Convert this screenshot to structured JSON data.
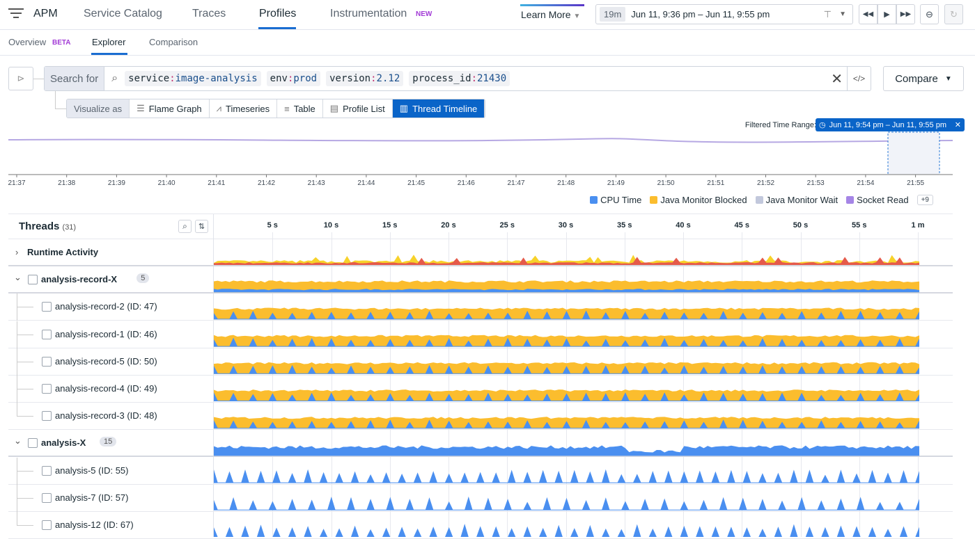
{
  "nav": {
    "app": "APM",
    "items": [
      "Service Catalog",
      "Traces",
      "Profiles",
      "Instrumentation"
    ],
    "active": "Profiles",
    "new_badge": "NEW",
    "learn_more": "Learn More"
  },
  "time": {
    "duration": "19m",
    "range": "Jun 11, 9:36 pm – Jun 11, 9:55 pm"
  },
  "subnav": {
    "items": [
      "Overview",
      "Explorer",
      "Comparison"
    ],
    "beta_badge": "BETA",
    "active": "Explorer"
  },
  "search": {
    "label": "Search for",
    "tags": [
      {
        "k": "service",
        "v": "image-analysis"
      },
      {
        "k": "env",
        "v": "prod"
      },
      {
        "k": "version",
        "v": "2.12"
      },
      {
        "k": "process_id",
        "v": "21430"
      }
    ],
    "compare": "Compare"
  },
  "visualize": {
    "label": "Visualize as",
    "options": [
      "Flame Graph",
      "Timeseries",
      "Table",
      "Profile List",
      "Thread Timeline"
    ],
    "active": "Thread Timeline"
  },
  "overview": {
    "filter_label": "Filtered Time Range:",
    "filter_value": "Jun 11, 9:54 pm – Jun 11, 9:55 pm",
    "ticks": [
      "21:37",
      "21:38",
      "21:39",
      "21:40",
      "21:41",
      "21:42",
      "21:43",
      "21:44",
      "21:45",
      "21:46",
      "21:47",
      "21:48",
      "21:49",
      "21:50",
      "21:51",
      "21:52",
      "21:53",
      "21:54",
      "21:55"
    ]
  },
  "legend": {
    "items": [
      {
        "label": "CPU Time",
        "color": "#4a8ff0"
      },
      {
        "label": "Java Monitor Blocked",
        "color": "#fbbd2e"
      },
      {
        "label": "Java Monitor Wait",
        "color": "#c2c8dc"
      },
      {
        "label": "Socket Read",
        "color": "#a585e6"
      }
    ],
    "more": "+9"
  },
  "threads": {
    "title": "Threads",
    "count": "(31)",
    "ticks": [
      "5 s",
      "10 s",
      "15 s",
      "20 s",
      "25 s",
      "30 s",
      "35 s",
      "40 s",
      "45 s",
      "50 s",
      "55 s",
      "1 m"
    ],
    "rows": [
      {
        "label": "Runtime Activity",
        "kind": "runtime"
      },
      {
        "label": "analysis-record-X",
        "kind": "group",
        "count": "5"
      },
      {
        "label": "analysis-record-2 (ID: 47)",
        "kind": "child"
      },
      {
        "label": "analysis-record-1 (ID: 46)",
        "kind": "child"
      },
      {
        "label": "analysis-record-5 (ID: 50)",
        "kind": "child"
      },
      {
        "label": "analysis-record-4 (ID: 49)",
        "kind": "child"
      },
      {
        "label": "analysis-record-3 (ID: 48)",
        "kind": "child"
      },
      {
        "label": "analysis-X",
        "kind": "group",
        "count": "15"
      },
      {
        "label": "analysis-5 (ID: 55)",
        "kind": "child"
      },
      {
        "label": "analysis-7 (ID: 57)",
        "kind": "child"
      },
      {
        "label": "analysis-12 (ID: 67)",
        "kind": "child"
      }
    ]
  }
}
